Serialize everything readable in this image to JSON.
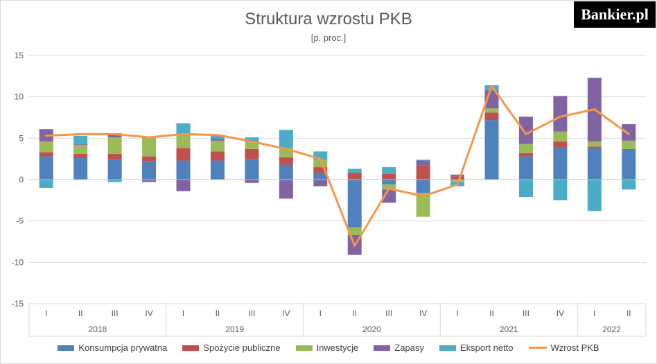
{
  "header": {
    "title": "Struktura wzrostu PKB",
    "subtitle": "[p. proc.]",
    "logo_text": "Bankier.pl"
  },
  "colors": {
    "consumption": "#4f81bd",
    "government": "#c0504d",
    "investment": "#9bbb59",
    "inventories": "#8064a2",
    "net_exports": "#4bacc6",
    "gdp_growth": "#f79646",
    "grid": "#d9d9d9",
    "axis": "#bfbfbf"
  },
  "chart_data": {
    "type": "bar",
    "stacked": true,
    "categories": [
      "I",
      "II",
      "III",
      "IV",
      "I",
      "II",
      "III",
      "IV",
      "I",
      "II",
      "III",
      "IV",
      "I",
      "II",
      "III",
      "IV",
      "I",
      "II"
    ],
    "groups": [
      {
        "label": "2018",
        "count": 4
      },
      {
        "label": "2019",
        "count": 4
      },
      {
        "label": "2020",
        "count": 4
      },
      {
        "label": "2021",
        "count": 4
      },
      {
        "label": "2022",
        "count": 2
      }
    ],
    "ylim": [
      -15,
      15
    ],
    "yticks": [
      15,
      10,
      5,
      0,
      -5,
      -10,
      -15
    ],
    "grid": true,
    "legend_position": "bottom",
    "series": [
      {
        "name": "Konsumpcja prywatna",
        "color_key": "consumption",
        "values": [
          2.8,
          2.6,
          2.4,
          2.2,
          2.3,
          2.3,
          2.5,
          1.8,
          0.8,
          -5.8,
          -0.6,
          -1.6,
          -0.1,
          7.2,
          2.8,
          3.9,
          3.8,
          3.6
        ]
      },
      {
        "name": "Spożycie publiczne",
        "color_key": "government",
        "values": [
          0.5,
          0.5,
          0.7,
          0.6,
          1.5,
          1.1,
          1.2,
          0.9,
          0.7,
          0.8,
          0.7,
          1.7,
          0.4,
          0.9,
          0.4,
          0.7,
          0.2,
          0.1
        ]
      },
      {
        "name": "Inwestycje",
        "color_key": "investment",
        "values": [
          1.3,
          1.1,
          2.0,
          2.3,
          1.5,
          1.3,
          0.8,
          1.1,
          0.9,
          -0.9,
          -0.6,
          -2.9,
          -0.2,
          0.5,
          1.1,
          1.2,
          0.6,
          1.0
        ]
      },
      {
        "name": "Zapasy",
        "color_key": "inventories",
        "values": [
          1.5,
          0.1,
          0.5,
          -0.3,
          -1.4,
          0.2,
          -0.4,
          -2.3,
          -0.8,
          -2.4,
          -1.6,
          0.6,
          0.2,
          2.2,
          3.3,
          4.3,
          7.7,
          2.0
        ]
      },
      {
        "name": "Eksport netto",
        "color_key": "net_exports",
        "values": [
          -1.0,
          1.0,
          -0.3,
          0.0,
          1.5,
          0.5,
          0.6,
          2.2,
          1.0,
          0.5,
          0.8,
          0.1,
          -0.5,
          0.6,
          -2.1,
          -2.5,
          -3.8,
          -1.2
        ]
      }
    ],
    "line": {
      "name": "Wzrost PKB",
      "color_key": "gdp_growth",
      "values": [
        5.3,
        5.5,
        5.5,
        5.1,
        5.5,
        5.4,
        4.6,
        3.7,
        2.5,
        -8.0,
        -1.1,
        -2.0,
        -0.6,
        11.3,
        5.5,
        7.6,
        8.5,
        5.5
      ]
    }
  }
}
